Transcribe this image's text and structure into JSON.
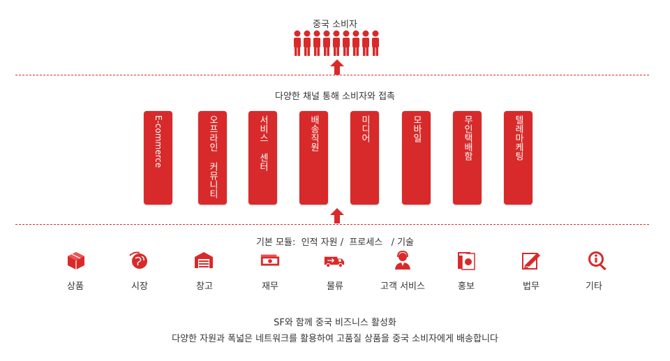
{
  "consumer_title": "중국 소비자",
  "channel_title": "다양한 채널 통해 소비자와 접촉",
  "channels": [
    {
      "label": "E-commerce"
    },
    {
      "label": "오프라인 커뮤니티"
    },
    {
      "label": "서비스 센터"
    },
    {
      "label": "배송직원"
    },
    {
      "label": "미디어"
    },
    {
      "label": "모바일"
    },
    {
      "label": "무인택배함"
    },
    {
      "label": "텔레마케팅"
    }
  ],
  "module_title": "기본 모듈:  인적 자원 /  프로세스   / 기술",
  "modules": [
    {
      "label": "상품",
      "icon": "box-icon"
    },
    {
      "label": "시장",
      "icon": "globe-icon"
    },
    {
      "label": "창고",
      "icon": "warehouse-icon"
    },
    {
      "label": "재무",
      "icon": "money-icon"
    },
    {
      "label": "물류",
      "icon": "truck-icon"
    },
    {
      "label": "고객 서비스",
      "icon": "customer-service-icon"
    },
    {
      "label": "홍보",
      "icon": "promotion-icon"
    },
    {
      "label": "법무",
      "icon": "legal-icon"
    },
    {
      "label": "기타",
      "icon": "info-icon"
    }
  ],
  "footer_line1": "SF와 함께 중국 비즈니스 활성화",
  "footer_line2": "다양한 자원과 폭넓은 네트워크를 활용하여 고품질 상품을 중국 소비자에게 배송합니다",
  "colors": {
    "accent": "#d82a2a",
    "text": "#333333",
    "background": "#ffffff"
  }
}
